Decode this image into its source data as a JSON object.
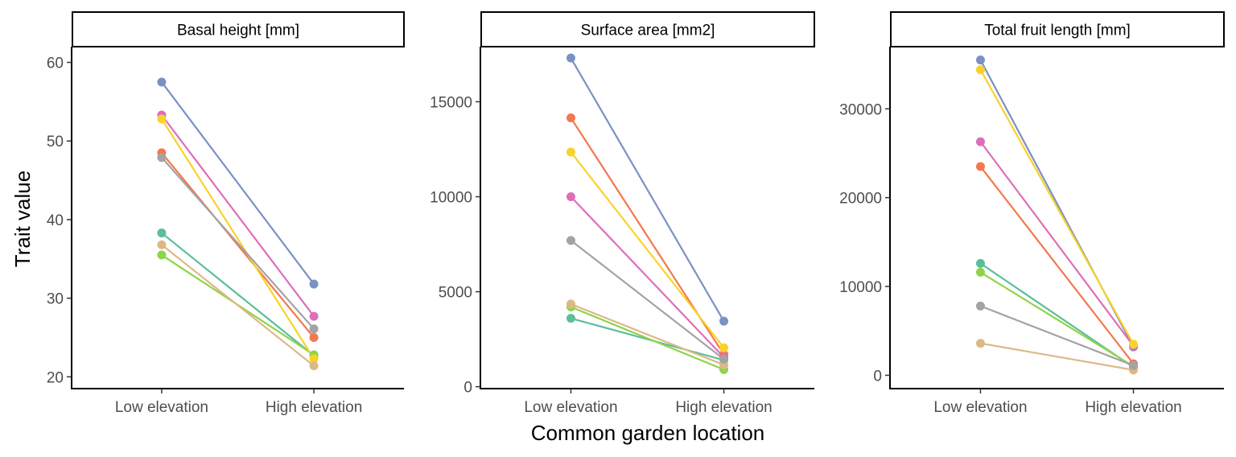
{
  "chart_data": {
    "type": "line",
    "xlabel": "Common garden location",
    "ylabel": "Trait value",
    "categories": [
      "Low elevation",
      "High elevation"
    ],
    "colors": [
      "#66C2A5",
      "#FC8D62",
      "#8DA0CB",
      "#E78AC3",
      "#A6D854",
      "#FFD92F",
      "#E5C494",
      "#B3B3B3"
    ],
    "colors_used": [
      "#5BBD9C",
      "#F2784F",
      "#7B91C4",
      "#DE6EB8",
      "#8ED44A",
      "#F9D22B",
      "#DDB887",
      "#A3A3A3"
    ],
    "panels": [
      {
        "title": "Basal height [mm]",
        "ylim": [
          18.5,
          62
        ],
        "yticks": [
          20,
          30,
          40,
          50,
          60
        ],
        "series": [
          {
            "color": "#5BBD9C",
            "values": [
              38.3,
              22.7
            ]
          },
          {
            "color": "#F2784F",
            "values": [
              48.5,
              25.0
            ]
          },
          {
            "color": "#7B91C4",
            "values": [
              57.5,
              31.8
            ]
          },
          {
            "color": "#DE6EB8",
            "values": [
              53.3,
              27.7
            ]
          },
          {
            "color": "#8ED44A",
            "values": [
              35.5,
              22.8
            ]
          },
          {
            "color": "#F9D22B",
            "values": [
              52.8,
              22.3
            ]
          },
          {
            "color": "#DDB887",
            "values": [
              36.8,
              21.4
            ]
          },
          {
            "color": "#A3A3A3",
            "values": [
              47.9,
              26.1
            ]
          }
        ]
      },
      {
        "title": "Surface area [mm2]",
        "ylim": [
          -100,
          17900
        ],
        "yticks": [
          0,
          5000,
          10000,
          15000
        ],
        "series": [
          {
            "color": "#5BBD9C",
            "values": [
              3600,
              1400
            ]
          },
          {
            "color": "#F2784F",
            "values": [
              14150,
              1700
            ]
          },
          {
            "color": "#7B91C4",
            "values": [
              17300,
              3450
            ]
          },
          {
            "color": "#DE6EB8",
            "values": [
              10000,
              1550
            ]
          },
          {
            "color": "#8ED44A",
            "values": [
              4200,
              900
            ]
          },
          {
            "color": "#F9D22B",
            "values": [
              12350,
              2050
            ]
          },
          {
            "color": "#DDB887",
            "values": [
              4350,
              1150
            ]
          },
          {
            "color": "#A3A3A3",
            "values": [
              7700,
              1450
            ]
          }
        ]
      },
      {
        "title": "Total fruit length [mm]",
        "ylim": [
          -1500,
          37000
        ],
        "yticks": [
          0,
          10000,
          20000,
          30000
        ],
        "series": [
          {
            "color": "#5BBD9C",
            "values": [
              12600,
              900
            ]
          },
          {
            "color": "#F2784F",
            "values": [
              23500,
              1300
            ]
          },
          {
            "color": "#7B91C4",
            "values": [
              35500,
              3200
            ]
          },
          {
            "color": "#DE6EB8",
            "values": [
              26300,
              3300
            ]
          },
          {
            "color": "#8ED44A",
            "values": [
              11600,
              1000
            ]
          },
          {
            "color": "#F9D22B",
            "values": [
              34400,
              3500
            ]
          },
          {
            "color": "#DDB887",
            "values": [
              3600,
              600
            ]
          },
          {
            "color": "#A3A3A3",
            "values": [
              7800,
              1100
            ]
          }
        ]
      }
    ]
  }
}
